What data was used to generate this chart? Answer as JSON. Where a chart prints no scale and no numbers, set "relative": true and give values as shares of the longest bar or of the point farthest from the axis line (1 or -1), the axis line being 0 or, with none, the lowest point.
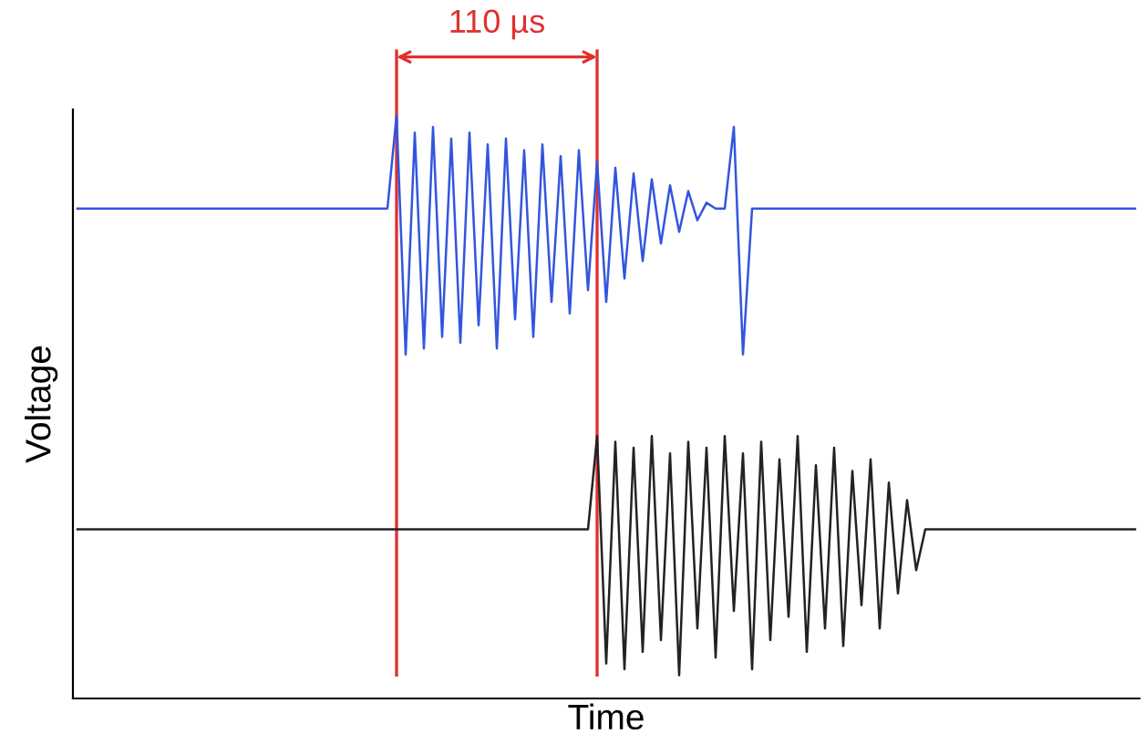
{
  "chart_data": {
    "type": "line",
    "relative": true,
    "xlabel": "Time",
    "ylabel": "Voltage",
    "legend": false,
    "marker": "none",
    "line_style": "solid",
    "categories": [
      null,
      null,
      null,
      null,
      null,
      null,
      null,
      null,
      null,
      null,
      null,
      null,
      null,
      null,
      null,
      null,
      null,
      null,
      null,
      null,
      null,
      null,
      null,
      null,
      null,
      null,
      null,
      null,
      null,
      null,
      null,
      null,
      null,
      null,
      null,
      null,
      null,
      null,
      null,
      null,
      null,
      null,
      null,
      null,
      null,
      null,
      null,
      null,
      null,
      null,
      null,
      null,
      null,
      null,
      null,
      null,
      null,
      null,
      null,
      null,
      null,
      null,
      null,
      null,
      null,
      null,
      null,
      null,
      null,
      null,
      null,
      null,
      null,
      null,
      null,
      null,
      null,
      null,
      null,
      null,
      null,
      null,
      null,
      null,
      null,
      null,
      null,
      null,
      null,
      null,
      null,
      null,
      null,
      null,
      null,
      null,
      null,
      null,
      null,
      null,
      null,
      null,
      null,
      null,
      null,
      null,
      null,
      null,
      null,
      null,
      null,
      null,
      null,
      null,
      null,
      null,
      null
    ],
    "series": [
      {
        "color": "#3355dd",
        "values": [
          0.84,
          0.84,
          0.84,
          0.84,
          0.84,
          0.84,
          0.84,
          0.84,
          0.84,
          0.84,
          0.84,
          0.84,
          0.84,
          0.84,
          0.84,
          0.84,
          0.84,
          0.84,
          0.84,
          0.84,
          0.84,
          0.84,
          0.84,
          0.84,
          0.84,
          0.84,
          0.84,
          0.84,
          0.84,
          0.84,
          0.84,
          0.84,
          0.84,
          0.84,
          0.84,
          1,
          0.59,
          0.97,
          0.6,
          0.98,
          0.62,
          0.96,
          0.61,
          0.97,
          0.64,
          0.95,
          0.6,
          0.96,
          0.65,
          0.94,
          0.62,
          0.95,
          0.68,
          0.93,
          0.66,
          0.94,
          0.7,
          0.92,
          0.68,
          0.91,
          0.72,
          0.9,
          0.75,
          0.89,
          0.78,
          0.88,
          0.8,
          0.87,
          0.82,
          0.85,
          0.84,
          0.84,
          0.98,
          0.59,
          0.84,
          0.84,
          0.84,
          0.84,
          0.84,
          0.84,
          0.84,
          0.84,
          0.84,
          0.84,
          0.84,
          0.84,
          0.84,
          0.84,
          0.84,
          0.84,
          0.84,
          0.84,
          0.84,
          0.84,
          0.84,
          0.84,
          0.84,
          0.84,
          0.84,
          0.84,
          0.84,
          0.84,
          0.84,
          0.84,
          0.84,
          0.84,
          0.84,
          0.84,
          0.84,
          0.84,
          0.84,
          0.84,
          0.84,
          0.84,
          0.84,
          0.84,
          0.84
        ]
      },
      {
        "color": "#222222",
        "values": [
          0.29,
          0.29,
          0.29,
          0.29,
          0.29,
          0.29,
          0.29,
          0.29,
          0.29,
          0.29,
          0.29,
          0.29,
          0.29,
          0.29,
          0.29,
          0.29,
          0.29,
          0.29,
          0.29,
          0.29,
          0.29,
          0.29,
          0.29,
          0.29,
          0.29,
          0.29,
          0.29,
          0.29,
          0.29,
          0.29,
          0.29,
          0.29,
          0.29,
          0.29,
          0.29,
          0.29,
          0.29,
          0.29,
          0.29,
          0.29,
          0.29,
          0.29,
          0.29,
          0.29,
          0.29,
          0.29,
          0.29,
          0.29,
          0.29,
          0.29,
          0.29,
          0.29,
          0.29,
          0.29,
          0.29,
          0.29,
          0.29,
          0.45,
          0.06,
          0.44,
          0.05,
          0.43,
          0.08,
          0.45,
          0.1,
          0.42,
          0.04,
          0.44,
          0.12,
          0.43,
          0.07,
          0.45,
          0.15,
          0.42,
          0.05,
          0.44,
          0.1,
          0.41,
          0.14,
          0.45,
          0.08,
          0.4,
          0.12,
          0.43,
          0.09,
          0.39,
          0.16,
          0.41,
          0.12,
          0.37,
          0.18,
          0.34,
          0.22,
          0.29,
          0.29,
          0.29,
          0.29,
          0.29,
          0.29,
          0.29,
          0.29,
          0.29,
          0.29,
          0.29,
          0.29,
          0.29,
          0.29,
          0.29,
          0.29,
          0.29,
          0.29,
          0.29,
          0.29,
          0.29,
          0.29,
          0.29,
          0.29
        ]
      }
    ],
    "annotations": [
      "110 µs"
    ]
  }
}
